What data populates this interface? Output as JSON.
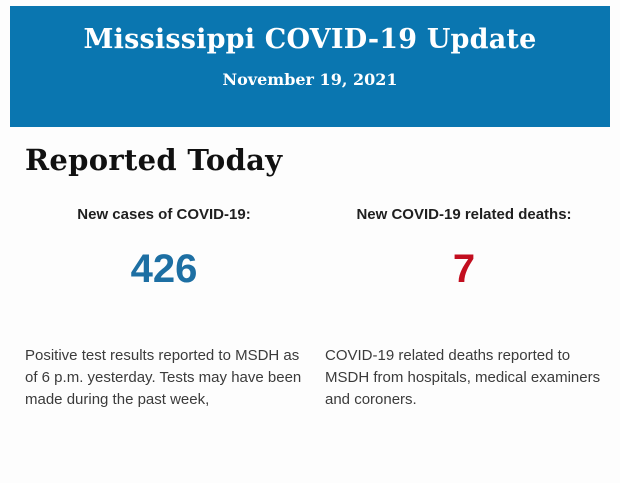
{
  "header": {
    "title": "Mississippi COVID-19 Update",
    "date": "November 19, 2021",
    "bg_color": "#0a76b0",
    "text_color": "#ffffff"
  },
  "main": {
    "section_title": "Reported Today"
  },
  "stats": {
    "cases": {
      "label": "New cases of COVID-19:",
      "value": "426",
      "value_color": "#1d6fa3",
      "description": "Positive test results reported to MSDH as of 6 p.m. yesterday. Tests may have been made during the past week,"
    },
    "deaths": {
      "label": "New COVID-19 related deaths:",
      "value": "7",
      "value_color": "#c20e1f",
      "description": "COVID-19 related deaths reported to MSDH from hospitals, medical examiners and coroners."
    }
  }
}
